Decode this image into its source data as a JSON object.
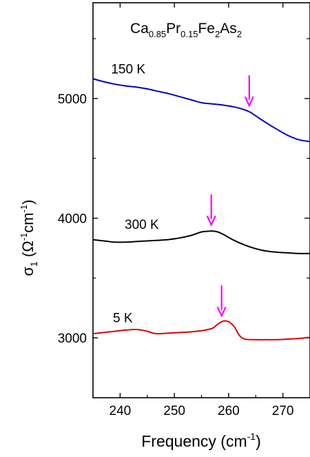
{
  "chart_data": {
    "type": "line",
    "title_parts": [
      {
        "text": "Ca",
        "sub": false
      },
      {
        "text": "0.85",
        "sub": true
      },
      {
        "text": "Pr",
        "sub": false
      },
      {
        "text": "0.15",
        "sub": true
      },
      {
        "text": "Fe",
        "sub": false
      },
      {
        "text": "2",
        "sub": true
      },
      {
        "text": "As",
        "sub": false
      },
      {
        "text": "2",
        "sub": true
      }
    ],
    "xlabel_main": "Frequency (cm",
    "xlabel_sup": "-1",
    "xlabel_end": ")",
    "ylabel_sym": "σ",
    "ylabel_sub": "1",
    "ylabel_open": " (Ω",
    "ylabel_sup1": "-1",
    "ylabel_mid": "cm",
    "ylabel_sup2": "-1",
    "ylabel_close": ")",
    "xlim": [
      235,
      275
    ],
    "ylim": [
      2500,
      5800
    ],
    "x_ticks": [
      240,
      250,
      260,
      270
    ],
    "y_ticks": [
      3000,
      4000,
      5000
    ],
    "y_ticks_unlabeled": [
      3500,
      4500,
      5500
    ],
    "series": [
      {
        "name": "150 K",
        "color": "#0000cc",
        "label_at": [
          241.5,
          5210
        ],
        "x": [
          235,
          237,
          239,
          241,
          243,
          245,
          247,
          249,
          251,
          253,
          255,
          257,
          259,
          261,
          263,
          264,
          265,
          267,
          269,
          271,
          273,
          275
        ],
        "y": [
          5165,
          5140,
          5120,
          5105,
          5095,
          5080,
          5060,
          5040,
          5015,
          4990,
          4965,
          4955,
          4945,
          4930,
          4905,
          4885,
          4855,
          4795,
          4740,
          4690,
          4655,
          4640
        ],
        "arrow_x": 263.8
      },
      {
        "name": "300 K",
        "color": "#000000",
        "label_at": [
          244,
          3910
        ],
        "x": [
          235,
          237,
          239,
          241,
          243,
          245,
          247,
          249,
          251,
          253,
          254,
          255,
          256,
          257,
          258,
          259,
          261,
          263,
          265,
          267,
          269,
          271,
          273,
          275
        ],
        "y": [
          3820,
          3810,
          3800,
          3800,
          3805,
          3810,
          3815,
          3822,
          3835,
          3855,
          3870,
          3885,
          3890,
          3893,
          3885,
          3865,
          3815,
          3775,
          3745,
          3725,
          3715,
          3710,
          3705,
          3705
        ],
        "arrow_x": 256.8
      },
      {
        "name": "5 K",
        "color": "#dd0000",
        "label_at": [
          240.5,
          3130
        ],
        "x": [
          235,
          237,
          239,
          241,
          243,
          245,
          246,
          247,
          249,
          251,
          253,
          255,
          257,
          258,
          259,
          260,
          261,
          262,
          263,
          265,
          267,
          269,
          271,
          273,
          275
        ],
        "y": [
          3035,
          3045,
          3055,
          3065,
          3070,
          3055,
          3040,
          3035,
          3040,
          3045,
          3050,
          3060,
          3080,
          3115,
          3140,
          3135,
          3095,
          3020,
          2990,
          2985,
          2985,
          2985,
          2990,
          2995,
          3005
        ],
        "arrow_x": 258.7
      }
    ],
    "arrow_color": "#ff00ff"
  }
}
